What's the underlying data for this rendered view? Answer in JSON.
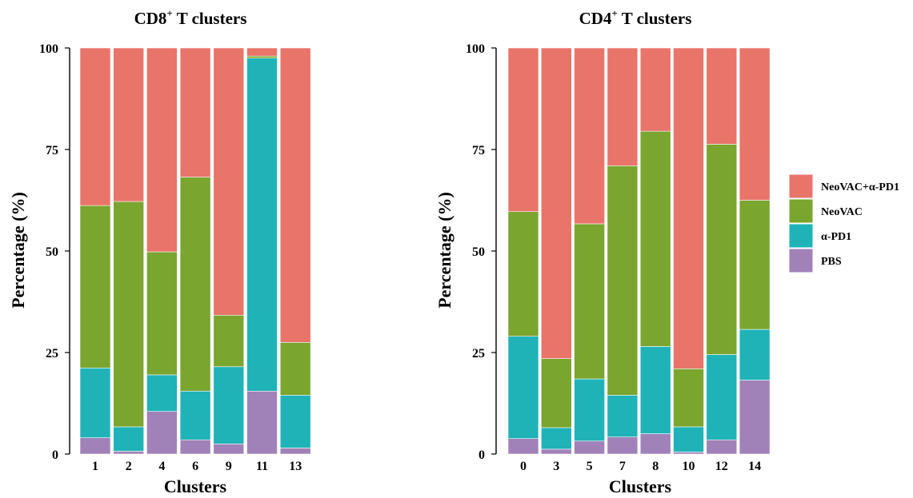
{
  "colors": {
    "NeoVAC+α-PD1": "#e8746a",
    "NeoVAC": "#7aa52f",
    "α-PD1": "#1fb3b8",
    "PBS": "#a082b8"
  },
  "legend": {
    "entries": [
      "NeoVAC+α-PD1",
      "NeoVAC",
      "α-PD1",
      "PBS"
    ]
  },
  "chart_data": [
    {
      "type": "bar",
      "stacked": true,
      "title": "CD8⁺ T clusters",
      "title_main": "CD8",
      "title_sup": "+",
      "title_rest": " T clusters",
      "xlabel": "Clusters",
      "ylabel": "Percentage (%)",
      "ylim": [
        0,
        100
      ],
      "yticks": [
        0,
        25,
        50,
        75,
        100
      ],
      "categories": [
        "1",
        "2",
        "4",
        "6",
        "9",
        "11",
        "13"
      ],
      "series": [
        {
          "name": "PBS",
          "values": [
            4,
            0.7,
            10.5,
            3.5,
            2.5,
            15.5,
            1.5
          ]
        },
        {
          "name": "α-PD1",
          "values": [
            17.2,
            6,
            9,
            12,
            19,
            82,
            13
          ]
        },
        {
          "name": "NeoVAC",
          "values": [
            40,
            55.5,
            30.3,
            52.7,
            12.7,
            0.5,
            13
          ]
        },
        {
          "name": "NeoVAC+α-PD1",
          "values": [
            38.8,
            37.8,
            50.2,
            31.8,
            65.8,
            2,
            72.5
          ]
        }
      ]
    },
    {
      "type": "bar",
      "stacked": true,
      "title": "CD4⁺ T clusters",
      "title_main": "CD4",
      "title_sup": "+",
      "title_rest": " T clusters",
      "xlabel": "Clusters",
      "ylabel": "Percentage (%)",
      "ylim": [
        0,
        100
      ],
      "yticks": [
        0,
        25,
        50,
        75,
        100
      ],
      "categories": [
        "0",
        "3",
        "5",
        "7",
        "8",
        "10",
        "12",
        "14"
      ],
      "series": [
        {
          "name": "PBS",
          "values": [
            3.8,
            1.2,
            3.2,
            4.2,
            5,
            0.5,
            3.5,
            18.2
          ]
        },
        {
          "name": "α-PD1",
          "values": [
            25.2,
            5.3,
            15.3,
            10.3,
            21.5,
            6.2,
            21,
            12.5
          ]
        },
        {
          "name": "NeoVAC",
          "values": [
            30.7,
            17,
            38.2,
            56.5,
            53,
            14.3,
            51.8,
            31.8
          ]
        },
        {
          "name": "NeoVAC+α-PD1",
          "values": [
            40.3,
            76.5,
            43.3,
            29,
            20.5,
            79,
            23.7,
            37.5
          ]
        }
      ]
    }
  ]
}
